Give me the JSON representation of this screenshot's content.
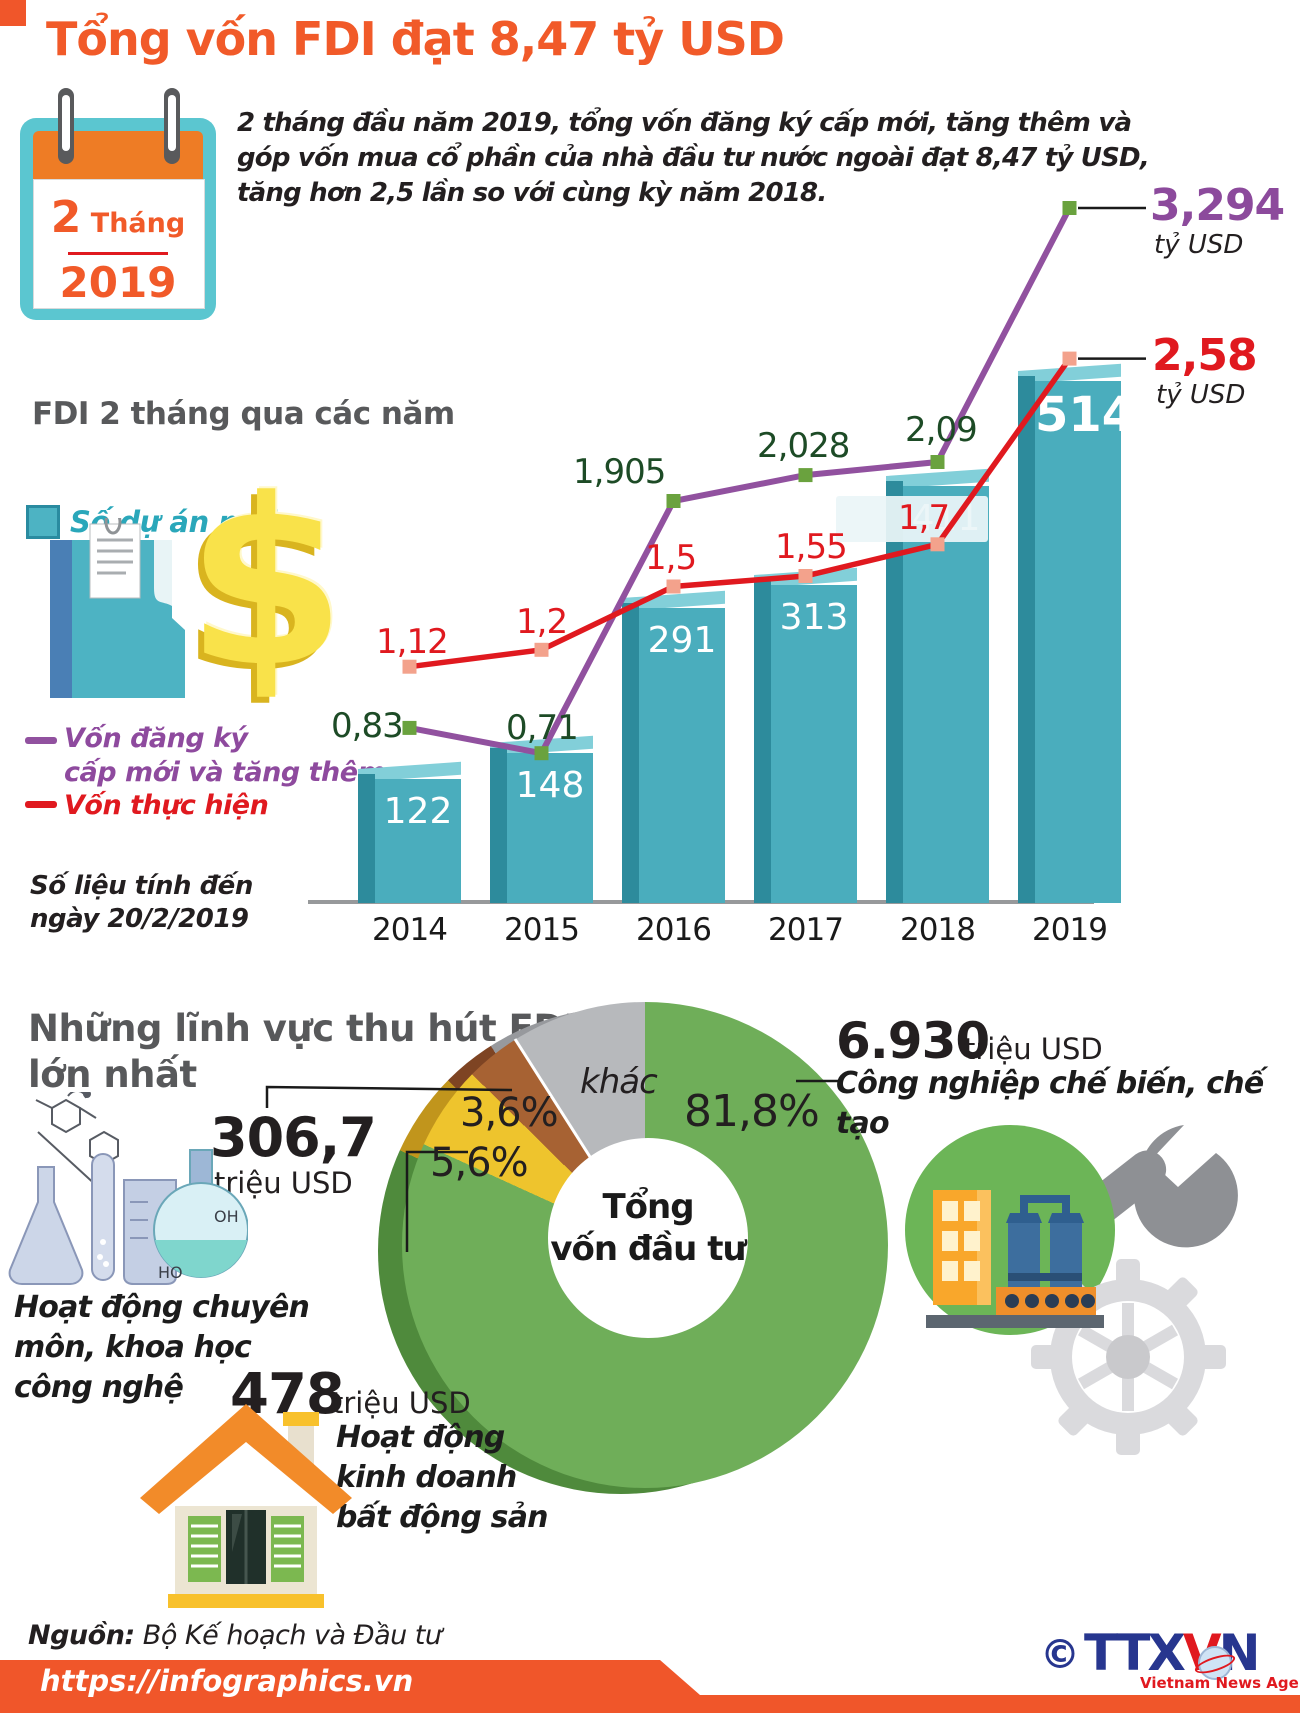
{
  "header": {
    "title": "Tổng vốn FDI đạt 8,47 tỷ USD",
    "calendar": {
      "number": "2",
      "label": "Tháng",
      "year": "2019"
    },
    "intro_lines": [
      "2 tháng đầu năm 2019, tổng vốn đăng ký cấp mới, tăng thêm và",
      "góp vốn mua cổ phần của nhà đầu tư nước ngoài đạt 8,47 tỷ USD,",
      "tăng hơn 2,5 lần so với cùng kỳ năm 2018."
    ]
  },
  "chart_data": [
    {
      "type": "bar",
      "title": "FDI 2 tháng qua các năm",
      "categories": [
        "2014",
        "2015",
        "2016",
        "2017",
        "2018",
        "2019"
      ],
      "series": [
        {
          "name": "Số dự án mới",
          "kind": "bar",
          "values": [
            122,
            148,
            291,
            313,
            411,
            514
          ],
          "labels": [
            "122",
            "148",
            "291",
            "313",
            "411",
            "514"
          ],
          "color": "#4aadbd"
        },
        {
          "name": "Vốn đăng ký cấp mới và tăng thêm",
          "kind": "line",
          "unit": "tỷ USD",
          "values": [
            0.83,
            0.71,
            1.905,
            2.028,
            2.09,
            3.294
          ],
          "labels": [
            "0,83",
            "0,71",
            "1,905",
            "2,028",
            "2,09",
            "3,294"
          ],
          "color": "#91519f",
          "label_color": "#1d4b26",
          "marker_color": "#6aa23e"
        },
        {
          "name": "Vốn thực hiện",
          "kind": "line",
          "unit": "tỷ USD",
          "values": [
            1.12,
            1.2,
            1.5,
            1.55,
            1.7,
            2.58
          ],
          "labels": [
            "1,12",
            "1,2",
            "1,5",
            "1,55",
            "1,7",
            "2,58"
          ],
          "color": "#e0191f",
          "label_color": "#e0191f",
          "marker_color": "#f3a28c"
        }
      ],
      "footnote": "Số liệu tính đến ngày 20/2/2019",
      "legend_position": "left"
    },
    {
      "type": "pie",
      "title": "Những lĩnh vực thu hút FDI lớn nhất",
      "center_label": "Tổng vốn đầu tư",
      "slices": [
        {
          "label": "Công nghiệp chế biến, chế tạo",
          "pct": 81.8,
          "pct_label": "81,8%",
          "value": "6.930",
          "unit": "triệu USD",
          "color": "#6fae59",
          "color_dark": "#4f8a3c"
        },
        {
          "label": "Hoạt động kinh doanh bất động sản",
          "pct": 5.6,
          "pct_label": "5,6%",
          "value": "478",
          "unit": "triệu USD",
          "color": "#eec42d",
          "color_dark": "#c1951c"
        },
        {
          "label": "Hoạt động chuyên môn, khoa học công nghệ",
          "pct": 3.6,
          "pct_label": "3,6%",
          "value": "306,7",
          "unit": "triệu USD",
          "color": "#a76233",
          "color_dark": "#7e4423"
        },
        {
          "label": "khác",
          "pct": 9.0,
          "pct_label": "khác",
          "color": "#b7b9bc",
          "color_dark": "#97999d"
        }
      ]
    }
  ],
  "line_chart": {
    "legend": {
      "bars": "Số dự án mới",
      "purple_lines": [
        "Vốn đăng ký",
        "cấp mới và tăng thêm"
      ],
      "red": "Vốn thực hiện"
    },
    "footnote_lines": [
      "Số liệu tính đến",
      "ngày 20/2/2019"
    ],
    "endpoints": {
      "purple": {
        "value": "3,294",
        "unit": "tỷ USD",
        "color": "#8c4a9c"
      },
      "red": {
        "value": "2,58",
        "unit": "tỷ USD",
        "color": "#e0191f"
      }
    }
  },
  "sectors": {
    "header_lines": [
      "Những lĩnh vực thu hút FDI",
      "lớn nhất"
    ],
    "center_lines": [
      "Tổng",
      "vốn đầu tư"
    ],
    "science": {
      "value": "306,7",
      "unit": "triệu USD",
      "name_lines": [
        "Hoạt động chuyên",
        "môn, khoa học",
        "công nghệ"
      ]
    },
    "realestate": {
      "value": "478",
      "unit": "triệu USD",
      "name_lines": [
        "Hoạt động",
        "kinh doanh",
        "bất động sản"
      ]
    },
    "manufacturing": {
      "value": "6.930",
      "unit": "triệu USD",
      "name": "Công nghiệp chế biến, chế tạo"
    }
  },
  "footer": {
    "source_label": "Nguồn:",
    "source_text": " Bộ Kế hoạch và Đầu tư",
    "url": "https://infographics.vn",
    "copyright": "©",
    "agency_abbr_1": "TTX",
    "agency_abbr_2": "V",
    "agency_abbr_3": "N",
    "agency_name": "Vietnam News Agency"
  },
  "colors": {
    "accent_orange": "#f15a29",
    "bar_teal": "#4aadbd",
    "line_purple": "#91519f",
    "line_red": "#e0191f",
    "title_gray": "#58595b"
  }
}
